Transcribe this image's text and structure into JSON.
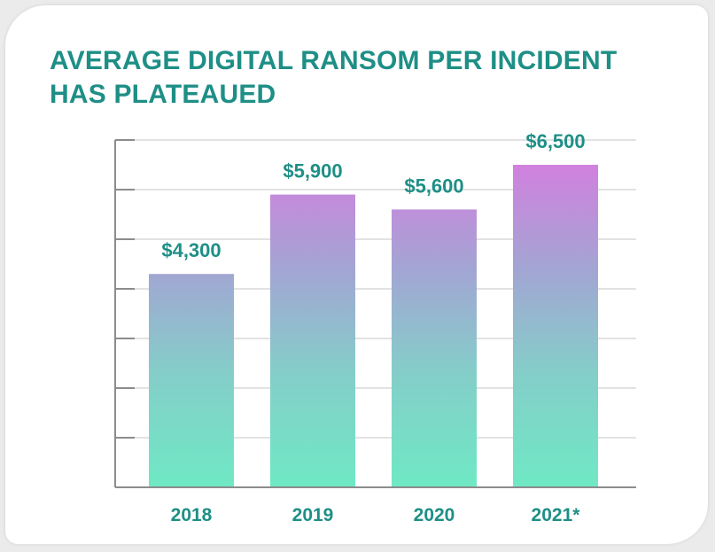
{
  "chart_data": {
    "type": "bar",
    "title": "AVERAGE DIGITAL RANSOM PER INCIDENT HAS PLATEAUED",
    "categories": [
      "2018",
      "2019",
      "2020",
      "2021*"
    ],
    "values": [
      4300,
      5900,
      5600,
      6500
    ],
    "value_labels": [
      "$4,300",
      "$5,900",
      "$5,600",
      "$6,500"
    ],
    "xlabel": "",
    "ylabel": "",
    "ylim": [
      0,
      7000
    ],
    "y_tick_values": [
      0,
      1000,
      2000,
      3000,
      4000,
      5000,
      6000,
      7000
    ],
    "grid": true,
    "colors": {
      "title": "#1e8f86",
      "bar_top": "#d57ddf",
      "bar_mid": "#96b6cf",
      "bar_bottom": "#6fe9c4",
      "grid": "#e2e2e2",
      "axis": "#8c8c8c"
    }
  }
}
